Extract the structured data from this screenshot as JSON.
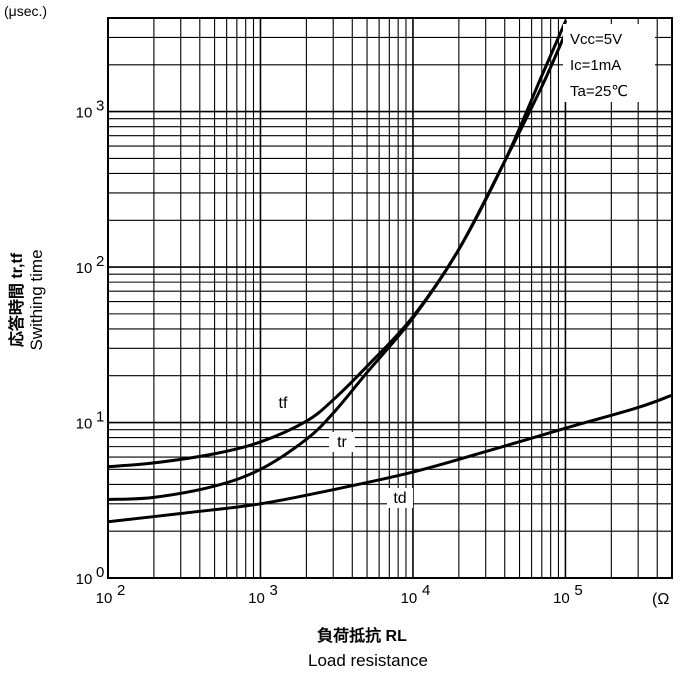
{
  "chart_data": {
    "type": "line",
    "title": "",
    "ylabel_unit": "(μsec.)",
    "ylabel_jp": "応答時間  tr,tf",
    "ylabel_en": "Swithing time",
    "xlabel_jp": "負荷抵抗  RL",
    "xlabel_en": "Load resistance",
    "x_unit": "(Ω",
    "x_scale": "log",
    "y_scale": "log",
    "xlim": [
      100,
      500000
    ],
    "ylim": [
      1,
      4000
    ],
    "grid": true,
    "conditions": [
      "Vcc=5V",
      "Ic=1mA",
      "Ta=25℃"
    ],
    "x_ticks": [
      {
        "value": 100,
        "base": "10",
        "exp": "2"
      },
      {
        "value": 1000,
        "base": "10",
        "exp": "3"
      },
      {
        "value": 10000,
        "base": "10",
        "exp": "4"
      },
      {
        "value": 100000,
        "base": "10",
        "exp": "5"
      }
    ],
    "y_ticks": [
      {
        "value": 1,
        "base": "10",
        "exp": "0"
      },
      {
        "value": 10,
        "base": "10",
        "exp": "1"
      },
      {
        "value": 100,
        "base": "10",
        "exp": "2"
      },
      {
        "value": 1000,
        "base": "10",
        "exp": "3"
      }
    ],
    "series": [
      {
        "name": "tf",
        "x": [
          100,
          200,
          500,
          1000,
          2000,
          3000,
          5000,
          10000,
          20000,
          40000,
          70000,
          100000
        ],
        "y": [
          5.2,
          5.5,
          6.3,
          7.5,
          10.2,
          14,
          23,
          48,
          130,
          480,
          1700,
          3800
        ]
      },
      {
        "name": "tr",
        "x": [
          100,
          200,
          500,
          1000,
          2000,
          3000,
          5000,
          10000,
          20000,
          40000,
          70000,
          100000
        ],
        "y": [
          3.2,
          3.3,
          3.9,
          5.0,
          7.8,
          11.5,
          21,
          47,
          130,
          480,
          1450,
          3200
        ]
      },
      {
        "name": "td",
        "x": [
          100,
          300,
          1000,
          3000,
          10000,
          30000,
          100000,
          300000,
          500000
        ],
        "y": [
          2.3,
          2.6,
          3.0,
          3.7,
          4.8,
          6.5,
          9.2,
          12.5,
          15
        ]
      }
    ]
  }
}
